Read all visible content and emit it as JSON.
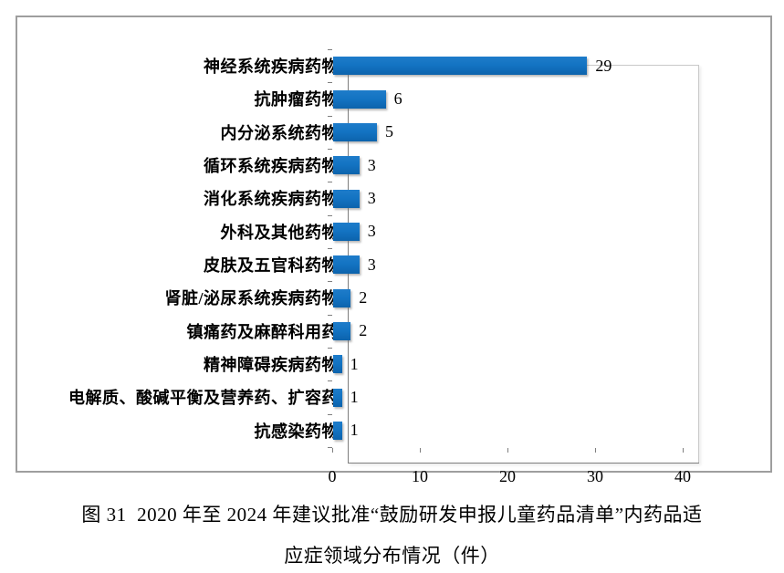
{
  "figure": {
    "caption_line1": "图 31  2020 年至 2024 年建议批准“鼓励研发申报儿童药品清单”内药品适",
    "caption_line2": "应症领域分布情况（件）"
  },
  "chart_data": {
    "type": "bar",
    "orientation": "horizontal",
    "title": "",
    "xlabel": "",
    "ylabel": "",
    "xlim": [
      0,
      40
    ],
    "xticks": [
      0,
      10,
      20,
      30,
      40
    ],
    "grid": false,
    "legend": "none",
    "data_labels_shown": true,
    "bar_color": "#1373c2",
    "axis_color": "#7f7f7f",
    "categories": [
      "神经系统疾病药物",
      "抗肿瘤药物",
      "内分泌系统药物",
      "循环系统疾病药物",
      "消化系统疾病药物",
      "外科及其他药物",
      "皮肤及五官科药物",
      "肾脏/泌尿系统疾病药物",
      "镇痛药及麻醉科用药",
      "精神障碍疾病药物",
      "电解质、酸碱平衡及营养药、扩容药",
      "抗感染药物"
    ],
    "values": [
      29,
      6,
      5,
      3,
      3,
      3,
      3,
      2,
      2,
      1,
      1,
      1
    ]
  }
}
